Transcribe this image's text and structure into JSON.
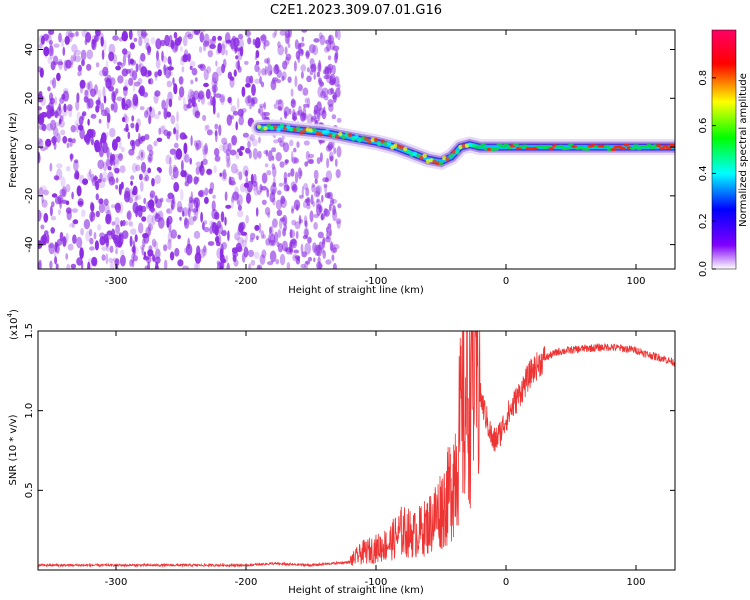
{
  "title": "C2E1.2023.309.07.01.G16",
  "colors": {
    "snr_line": "#ee3333",
    "scatter_point": "#8a2be2",
    "colorbar": [
      "#ff00ff",
      "#ff0000",
      "#ffff00",
      "#00ff00",
      "#00ffff",
      "#0000ff",
      "#7f00ff",
      "#ffffff"
    ]
  },
  "chart_data": [
    {
      "type": "heatmap",
      "xlabel": "Height of straight line (km)",
      "ylabel": "Frequency (Hz)",
      "xlim": [
        -360,
        130
      ],
      "ylim": [
        -50,
        48
      ],
      "x_ticks": [
        -300,
        -200,
        -100,
        0,
        100
      ],
      "y_ticks": [
        -40,
        -20,
        0,
        20,
        40
      ],
      "x_tick_labels": [
        "-300",
        "-200",
        "-100",
        "0",
        "100"
      ],
      "y_tick_labels": [
        "-40",
        "-20",
        "0",
        "20",
        "40"
      ],
      "noise_region_x": [
        -360,
        -128
      ],
      "signal_track": {
        "x": [
          -190,
          -175,
          -160,
          -140,
          -120,
          -100,
          -85,
          -70,
          -60,
          -50,
          -42,
          -35,
          -28,
          -20,
          0,
          50,
          100,
          130
        ],
        "y": [
          8,
          8,
          7,
          6,
          4,
          2,
          0,
          -3,
          -5,
          -6,
          -4,
          0,
          1,
          0,
          0,
          0,
          0,
          0
        ]
      },
      "colorbar": {
        "label": "Normalized spectral amplitude",
        "range": [
          0,
          1
        ],
        "ticks": [
          0.0,
          0.2,
          0.4,
          0.6,
          0.8
        ],
        "tick_labels": [
          "0.0",
          "0.2",
          "0.4",
          "0.6",
          "0.8"
        ]
      }
    },
    {
      "type": "line",
      "xlabel": "Height of straight line (km)",
      "ylabel": "SNR (10 * v/v)",
      "y_multiplier": "(x10",
      "y_multiplier_exp": "4",
      "xlim": [
        -360,
        130
      ],
      "ylim": [
        0,
        1.5
      ],
      "x_ticks": [
        -300,
        -200,
        -100,
        0,
        100
      ],
      "y_ticks": [
        0.5,
        1.0,
        1.5
      ],
      "x_tick_labels": [
        "-300",
        "-200",
        "-100",
        "0",
        "100"
      ],
      "y_tick_labels": [
        "0.5",
        "1.0",
        "1.5"
      ],
      "series": [
        {
          "x": [
            -360,
            -300,
            -250,
            -200,
            -180,
            -150,
            -120,
            -110,
            -100,
            -90,
            -80,
            -70,
            -60,
            -50,
            -45,
            -40,
            -35,
            -30,
            -25,
            -20,
            -15,
            -10,
            -5,
            0,
            10,
            20,
            30,
            40,
            60,
            80,
            100,
            110,
            120,
            130
          ],
          "y": [
            0.03,
            0.03,
            0.03,
            0.03,
            0.04,
            0.03,
            0.05,
            0.1,
            0.12,
            0.15,
            0.22,
            0.2,
            0.25,
            0.35,
            0.4,
            0.55,
            0.8,
            1.0,
            1.2,
            1.1,
            0.95,
            0.8,
            0.85,
            0.95,
            1.1,
            1.25,
            1.33,
            1.37,
            1.39,
            1.4,
            1.38,
            1.35,
            1.33,
            1.3
          ]
        }
      ]
    }
  ]
}
